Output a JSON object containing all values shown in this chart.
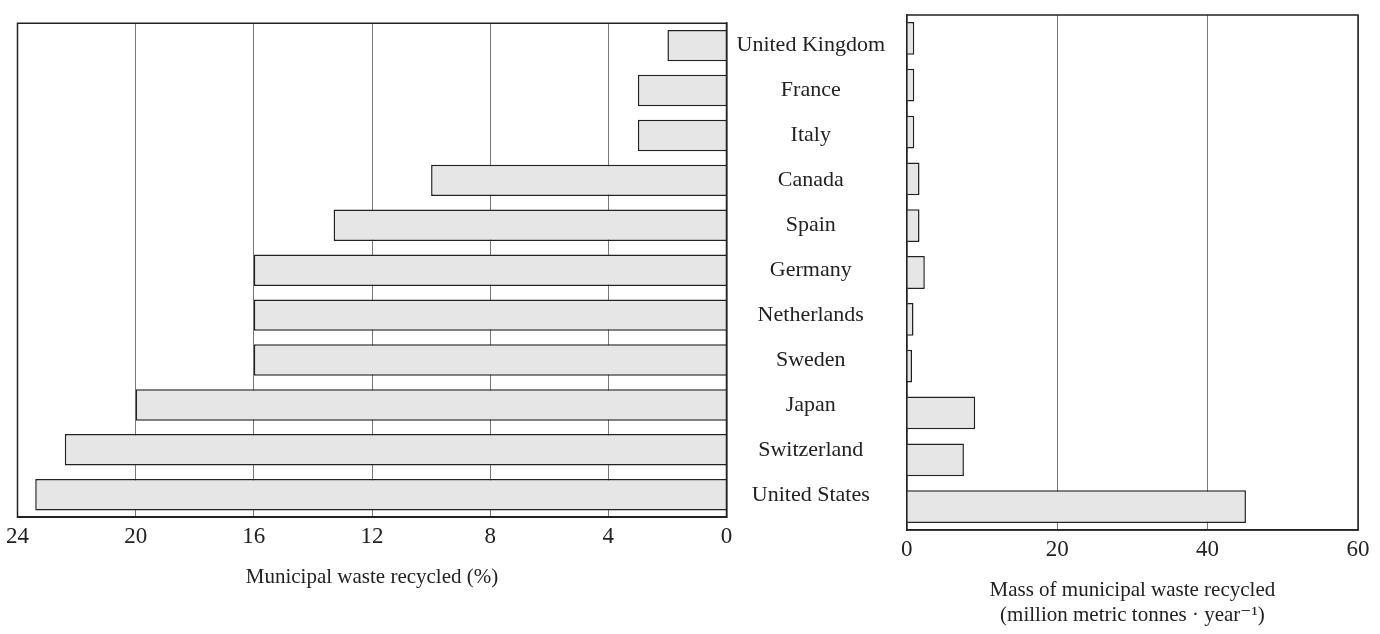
{
  "chart_data": [
    {
      "type": "bar",
      "orientation": "horizontal",
      "xlabel": "Municipal waste recycled (%)",
      "categories": [
        "United Kingdom",
        "France",
        "Italy",
        "Canada",
        "Spain",
        "Germany",
        "Netherlands",
        "Sweden",
        "Japan",
        "Switzerland",
        "United States"
      ],
      "values": [
        2,
        3,
        3,
        10,
        13.3,
        16,
        16,
        16,
        20,
        22.4,
        23.4
      ],
      "color": "#e6e6e6",
      "xlim": [
        24,
        0
      ],
      "xticks": [
        24,
        20,
        16,
        12,
        8,
        4,
        0
      ],
      "grid": "x"
    },
    {
      "type": "bar",
      "orientation": "horizontal",
      "xlabel": "Mass of municipal waste recycled\n(million metric tonnes · year⁻¹)",
      "categories": [
        null,
        null,
        null,
        null,
        null,
        null,
        null,
        null,
        null,
        null,
        null
      ],
      "values": [
        1.0,
        1.0,
        1.0,
        1.7,
        1.7,
        2.4,
        0.9,
        0.7,
        9.1,
        7.6,
        45.1
      ],
      "color": "#e6e6e6",
      "xlim": [
        0,
        60
      ],
      "xticks": [
        0,
        20,
        40,
        60
      ],
      "grid": "x",
      "tick_labels": "x"
    }
  ]
}
